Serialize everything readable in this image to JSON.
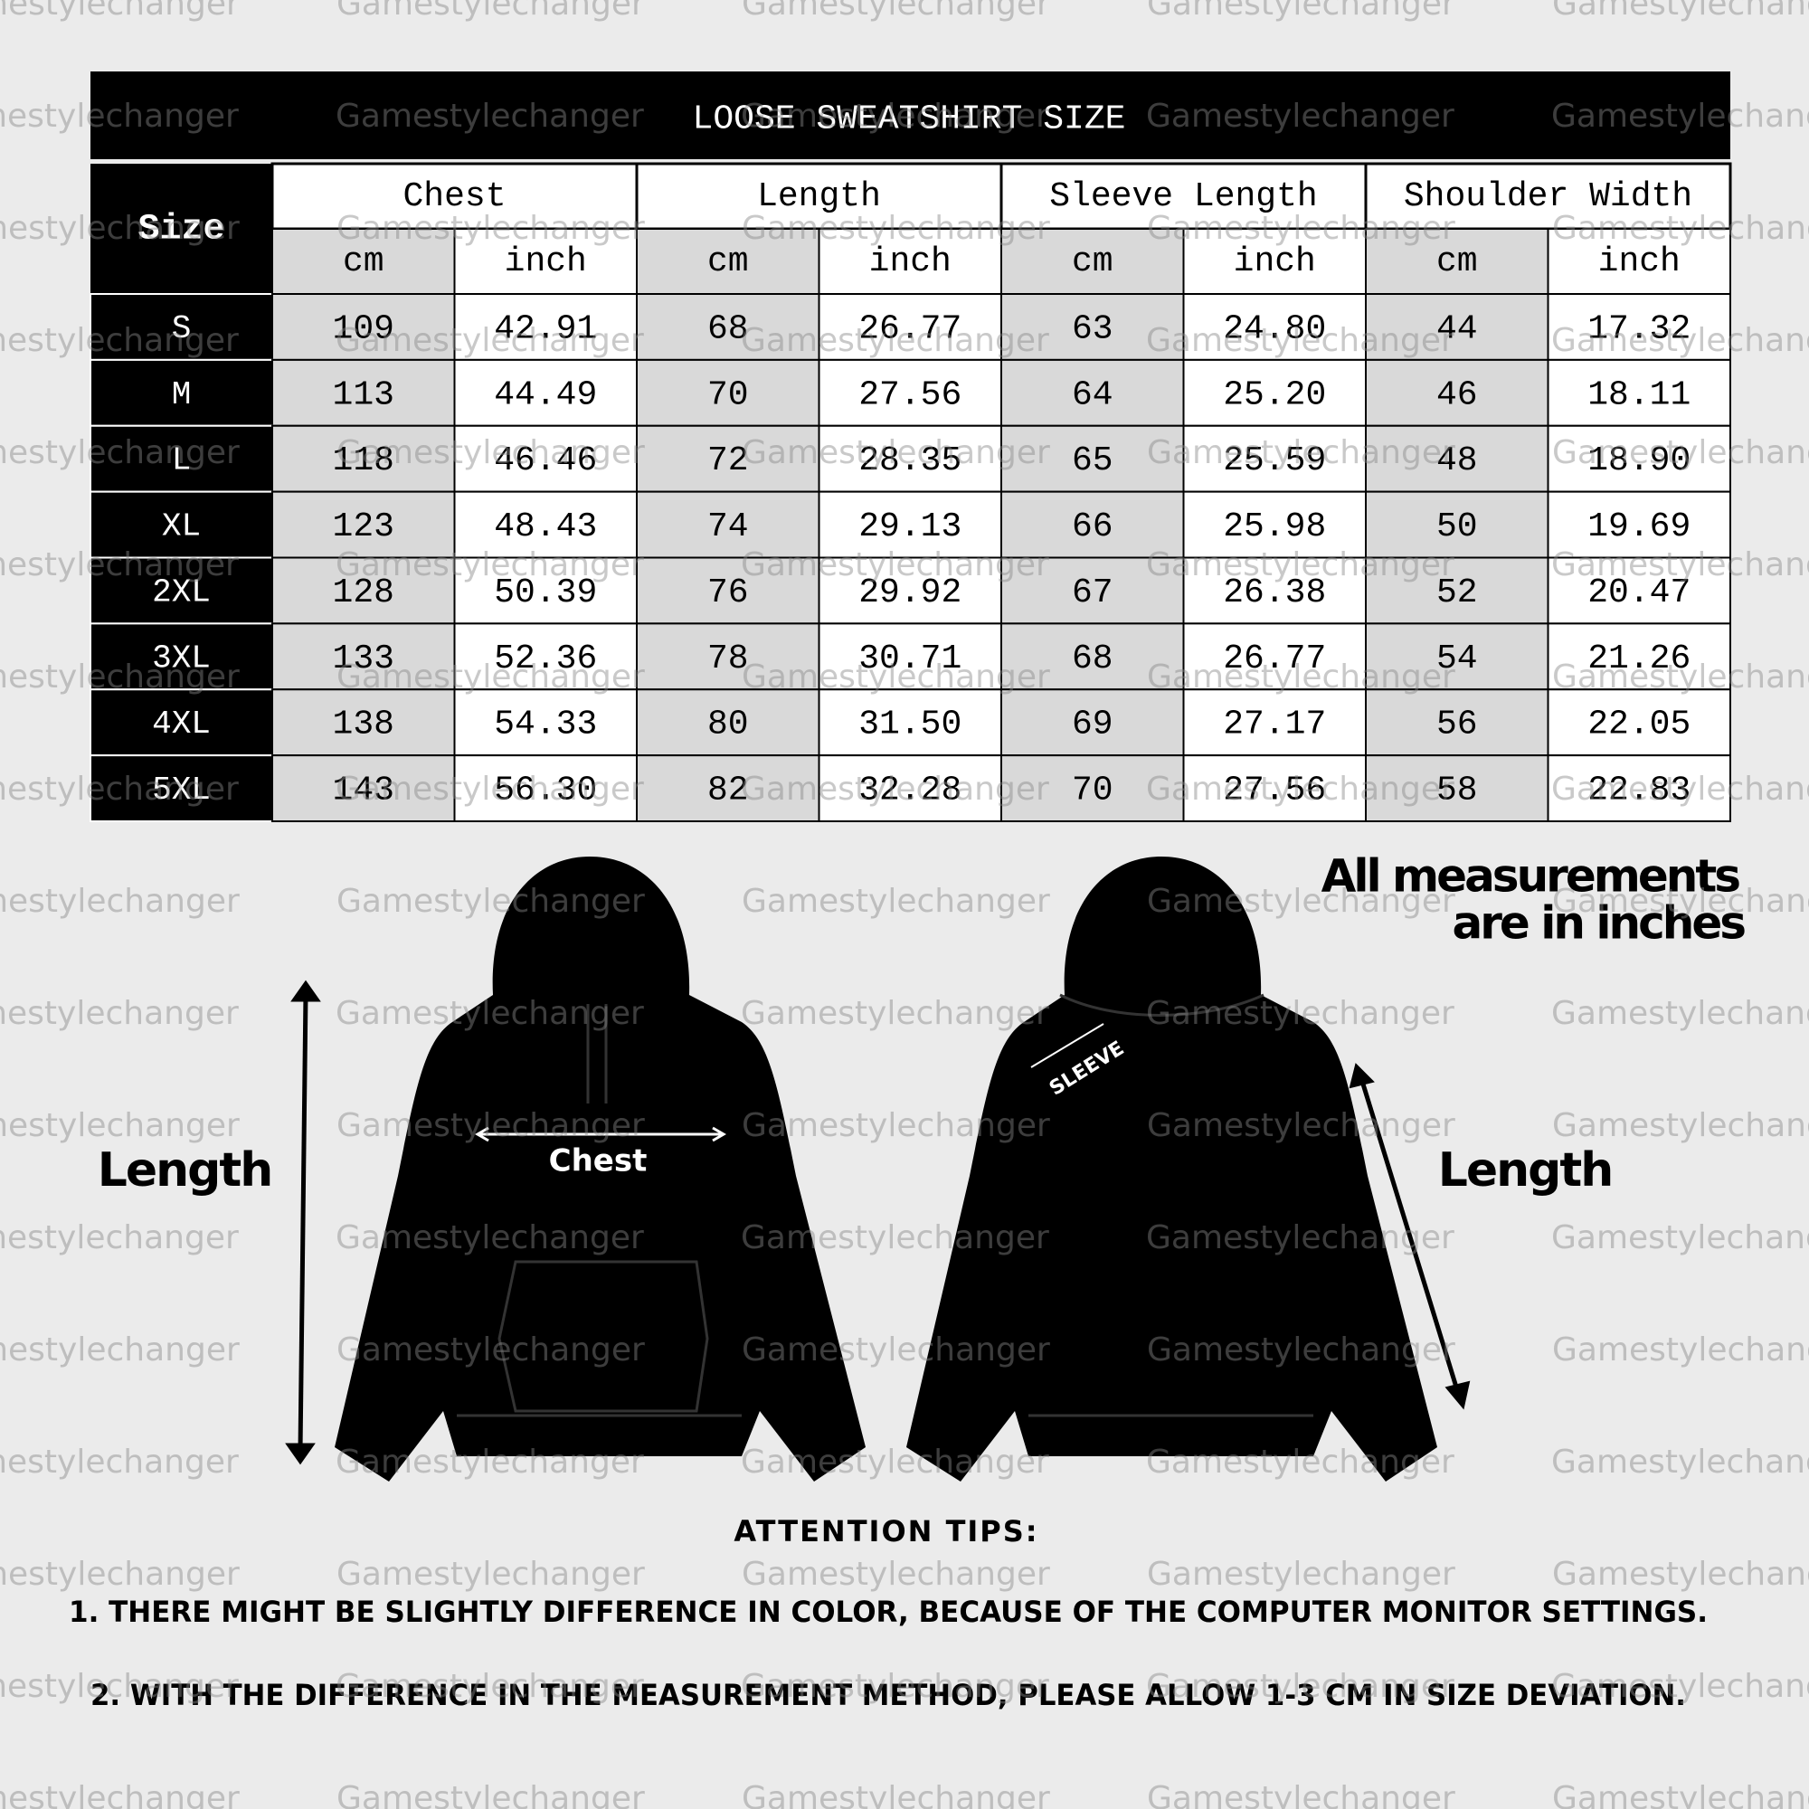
{
  "table": {
    "title": "LOOSE SWEATSHIRT SIZE",
    "size_header": "Size",
    "groups": [
      {
        "label": "Chest",
        "units": [
          "cm",
          "inch"
        ]
      },
      {
        "label": "Length",
        "units": [
          "cm",
          "inch"
        ]
      },
      {
        "label": "Sleeve Length",
        "units": [
          "cm",
          "inch"
        ]
      },
      {
        "label": "Shoulder Width",
        "units": [
          "cm",
          "inch"
        ]
      }
    ],
    "rows": [
      [
        "S",
        "109",
        "42.91",
        "68",
        "26.77",
        "63",
        "24.80",
        "44",
        "17.32"
      ],
      [
        "M",
        "113",
        "44.49",
        "70",
        "27.56",
        "64",
        "25.20",
        "46",
        "18.11"
      ],
      [
        "L",
        "118",
        "46.46",
        "72",
        "28.35",
        "65",
        "25.59",
        "48",
        "18.90"
      ],
      [
        "XL",
        "123",
        "48.43",
        "74",
        "29.13",
        "66",
        "25.98",
        "50",
        "19.69"
      ],
      [
        "2XL",
        "128",
        "50.39",
        "76",
        "29.92",
        "67",
        "26.38",
        "52",
        "20.47"
      ],
      [
        "3XL",
        "133",
        "52.36",
        "78",
        "30.71",
        "68",
        "26.77",
        "54",
        "21.26"
      ],
      [
        "4XL",
        "138",
        "54.33",
        "80",
        "31.50",
        "69",
        "27.17",
        "56",
        "22.05"
      ],
      [
        "5XL",
        "143",
        "56.30",
        "82",
        "32.28",
        "70",
        "27.56",
        "58",
        "22.83"
      ]
    ]
  },
  "diagram": {
    "note_line1": "All measurements",
    "note_line2": "are in inches",
    "front_length": "Length",
    "chest": "Chest",
    "sleeve": "SLEEVE",
    "back_length": "Length"
  },
  "tips": {
    "heading": "ATTENTION TIPS:",
    "items": [
      "1. THERE MIGHT BE SLIGHTLY DIFFERENCE IN COLOR, BECAUSE OF THE COMPUTER MONITOR SETTINGS.",
      "2. WITH THE DIFFERENCE IN THE MEASUREMENT METHOD, PLEASE ALLOW 1-3 CM IN SIZE DEVIATION."
    ]
  },
  "watermark": "Gamestylechanger"
}
